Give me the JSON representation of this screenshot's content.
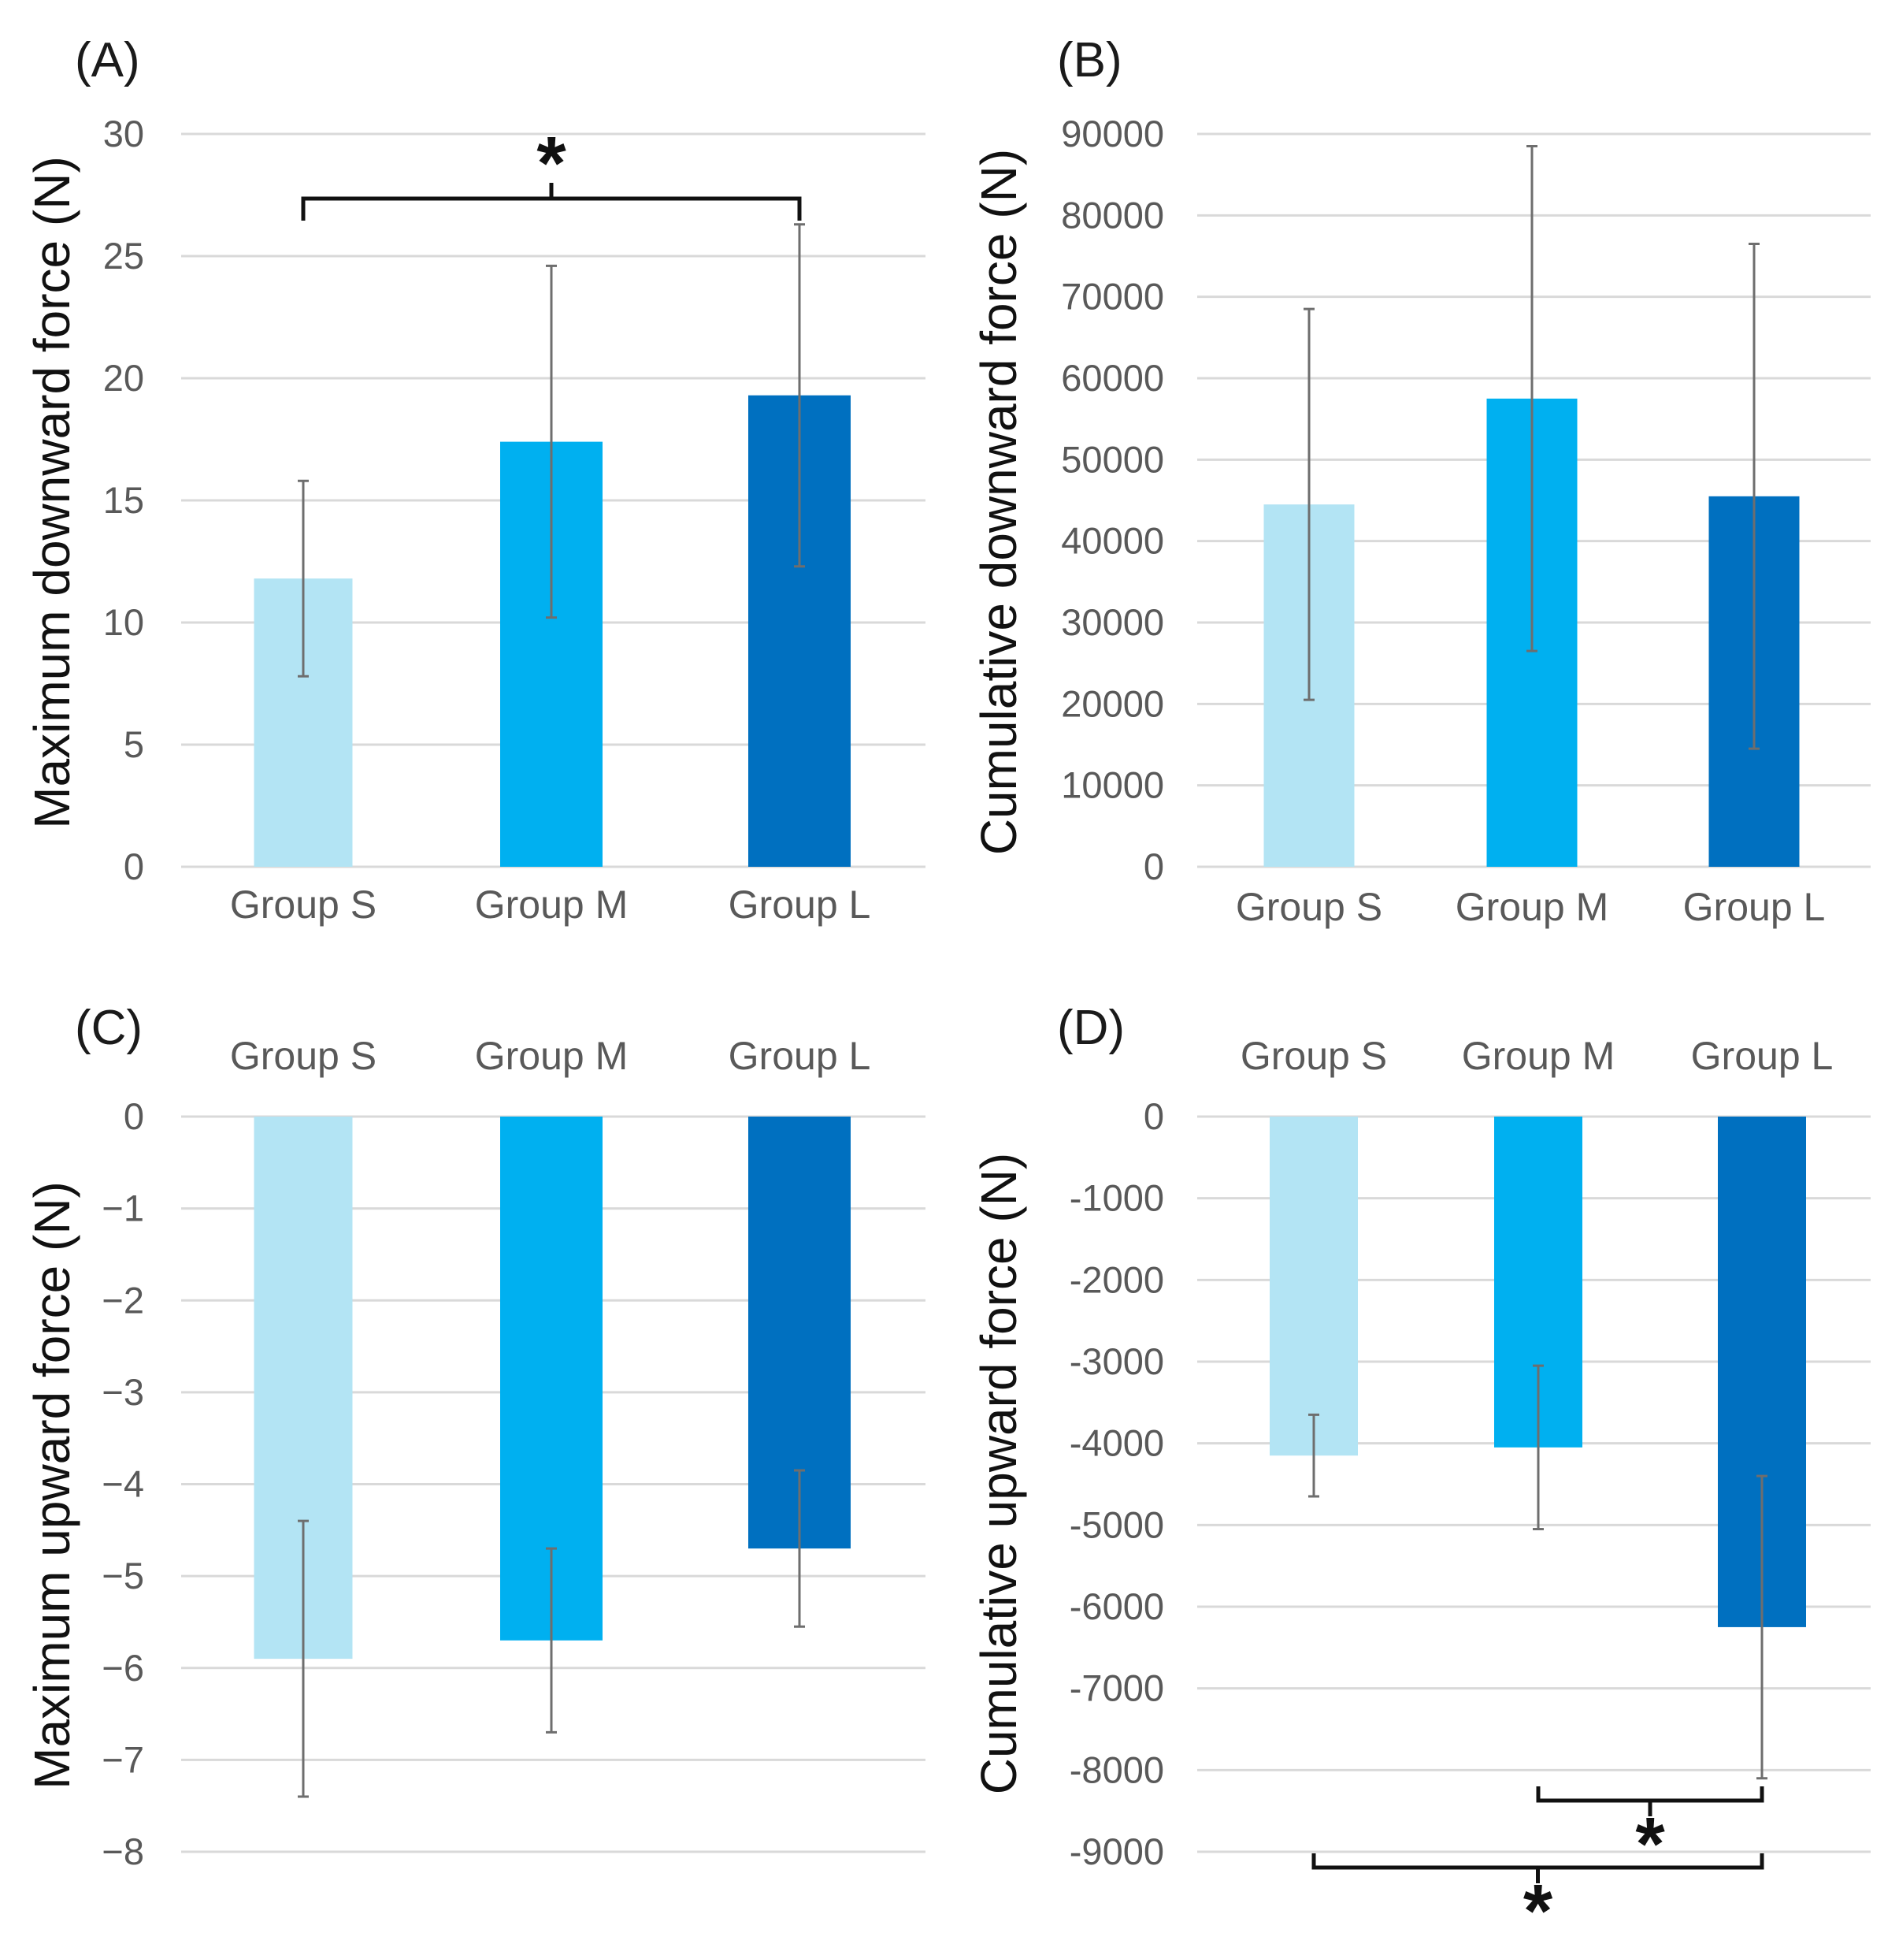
{
  "colors": {
    "group_s": "#b3e4f4",
    "group_m": "#00b0f0",
    "group_l": "#0070c0"
  },
  "chart_data": [
    {
      "panel": "(A)",
      "type": "bar",
      "categories": [
        "Group S",
        "Group M",
        "Group L"
      ],
      "values": [
        11.8,
        17.4,
        19.3
      ],
      "errors": [
        4.0,
        7.2,
        7.0
      ],
      "ylabel": "Maximum downward force (N)",
      "ylim": [
        0,
        30
      ],
      "yticks": [
        0,
        5,
        10,
        15,
        20,
        25,
        30
      ],
      "tick_labels": [
        "0",
        "5",
        "10",
        "15",
        "20",
        "25",
        "30"
      ],
      "category_position": "bottom",
      "significance": [
        {
          "between": [
            0,
            2
          ],
          "label": "*",
          "placement": "above"
        }
      ]
    },
    {
      "panel": "(B)",
      "type": "bar",
      "categories": [
        "Group S",
        "Group M",
        "Group L"
      ],
      "values": [
        44500,
        57500,
        45500
      ],
      "errors": [
        24000,
        31000,
        31000
      ],
      "ylabel": "Cumulative downward force (N)",
      "ylim": [
        0,
        90000
      ],
      "yticks": [
        0,
        10000,
        20000,
        30000,
        40000,
        50000,
        60000,
        70000,
        80000,
        90000
      ],
      "tick_labels": [
        "0",
        "10000",
        "20000",
        "30000",
        "40000",
        "50000",
        "60000",
        "70000",
        "80000",
        "90000"
      ],
      "category_position": "bottom",
      "significance": []
    },
    {
      "panel": "(C)",
      "type": "bar",
      "categories": [
        "Group S",
        "Group M",
        "Group L"
      ],
      "values": [
        -5.9,
        -5.7,
        -4.7
      ],
      "errors": [
        1.5,
        1.0,
        0.85
      ],
      "ylabel": "Maximum upward force (N)",
      "ylim": [
        -8,
        0
      ],
      "yticks": [
        0,
        -1,
        -2,
        -3,
        -4,
        -5,
        -6,
        -7,
        -8
      ],
      "tick_labels": [
        "0",
        "−1",
        "−2",
        "−3",
        "−4",
        "−5",
        "−6",
        "−7",
        "−8"
      ],
      "category_position": "top",
      "significance": []
    },
    {
      "panel": "(D)",
      "type": "bar",
      "categories": [
        "Group S",
        "Group M",
        "Group L"
      ],
      "values": [
        -4150,
        -4050,
        -6250
      ],
      "errors": [
        500,
        1000,
        1850
      ],
      "ylabel": "Cumulative upward force (N)",
      "ylim": [
        -9000,
        0
      ],
      "yticks": [
        0,
        -1000,
        -2000,
        -3000,
        -4000,
        -5000,
        -6000,
        -7000,
        -8000,
        -9000
      ],
      "tick_labels": [
        "0",
        "-1000",
        "-2000",
        "-3000",
        "-4000",
        "-5000",
        "-6000",
        "-7000",
        "-8000",
        "-9000"
      ],
      "category_position": "top",
      "significance": [
        {
          "between": [
            1,
            2
          ],
          "label": "*",
          "placement": "below",
          "level": 1
        },
        {
          "between": [
            0,
            2
          ],
          "label": "*",
          "placement": "below",
          "level": 2
        }
      ]
    }
  ]
}
